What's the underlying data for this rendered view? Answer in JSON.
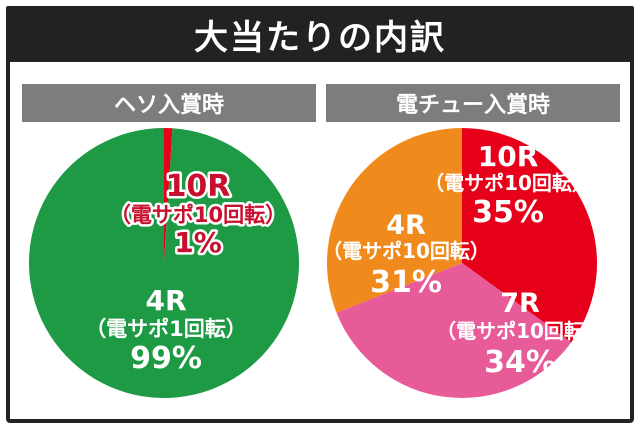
{
  "title": "大当たりの内訳",
  "colors": {
    "title_bg": "#222222",
    "header_bg": "#7d7d7d",
    "green": "#1e9a45",
    "red": "#e60019",
    "orange": "#f08a1c",
    "pink": "#e85b99"
  },
  "chart_data": [
    {
      "type": "pie",
      "title": "ヘソ入賞時",
      "slices": [
        {
          "label_round": "10R",
          "label_support": "（電サポ10回転）",
          "label_percent": "1%",
          "value": 1,
          "color": "#e60019"
        },
        {
          "label_round": "4R",
          "label_support": "（電サポ1回転）",
          "label_percent": "99%",
          "value": 99,
          "color": "#1e9a45"
        }
      ]
    },
    {
      "type": "pie",
      "title": "電チュー入賞時",
      "slices": [
        {
          "label_round": "10R",
          "label_support": "（電サポ10回転）",
          "label_percent": "35%",
          "value": 35,
          "color": "#e60019"
        },
        {
          "label_round": "7R",
          "label_support": "（電サポ10回転）",
          "label_percent": "34%",
          "value": 34,
          "color": "#e85b99"
        },
        {
          "label_round": "4R",
          "label_support": "（電サポ10回転）",
          "label_percent": "31%",
          "value": 31,
          "color": "#f08a1c"
        }
      ]
    }
  ]
}
